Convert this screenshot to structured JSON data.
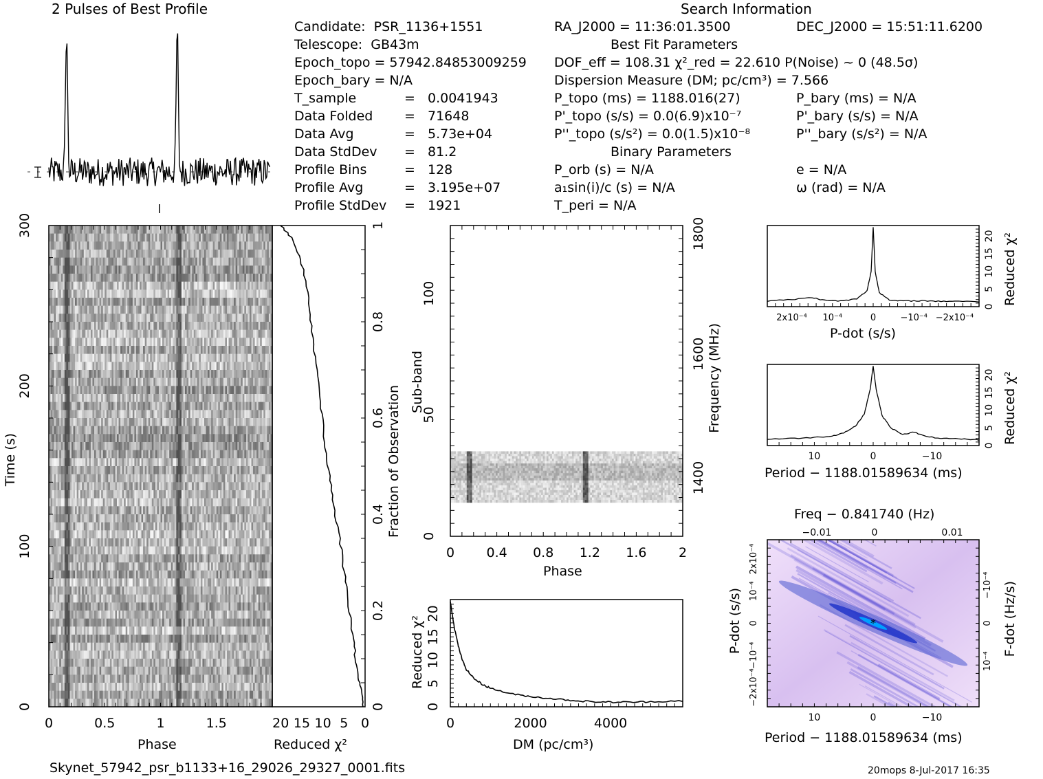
{
  "profile_panel": {
    "title": "2 Pulses of Best Profile",
    "pulse_phase": 0.16,
    "pulse_amplitude": 1.0,
    "noise_level": 0.1
  },
  "search_info": {
    "heading": "Search Information",
    "candidate_label": "Candidate:",
    "candidate": "PSR_1136+1551",
    "telescope_label": "Telescope:",
    "telescope": "GB43m",
    "epoch_topo": "Epoch_topo = 57942.84853009259",
    "epoch_bary": "Epoch_bary = N/A",
    "t_sample_label": "T_sample",
    "t_sample": "0.0041943",
    "data_folded_label": "Data Folded",
    "data_folded": "71648",
    "data_avg_label": "Data Avg",
    "data_avg": "5.73e+04",
    "data_stddev_label": "Data StdDev",
    "data_stddev": "81.2",
    "profile_bins_label": "Profile Bins",
    "profile_bins": "128",
    "profile_avg_label": "Profile Avg",
    "profile_avg": "3.195e+07",
    "profile_stddev_label": "Profile StdDev",
    "profile_stddev": "1921",
    "eq": "=",
    "ra": "RA_J2000 = 11:36:01.3500",
    "dec": "DEC_J2000 = 15:51:11.6200",
    "best_fit_heading": "Best Fit Parameters",
    "dof": "DOF_eff = 108.31  χ²_red = 22.610  P(Noise) ~ 0   (48.5σ)",
    "dm": "Dispersion Measure (DM; pc/cm³) = 7.566",
    "p_topo": "P_topo (ms) =  1188.016(27)",
    "p_bary": "P_bary (ms) = N/A",
    "pdot_topo": "P'_topo (s/s) = 0.0(6.9)x10⁻⁷",
    "pdot_bary": "P'_bary (s/s) = N/A",
    "pddot_topo": "P''_topo (s/s²) = 0.0(1.5)x10⁻⁸",
    "pddot_bary": "P''_bary (s/s²) = N/A",
    "binary_heading": "Binary Parameters",
    "p_orb": "P_orb (s) = N/A",
    "e": "e = N/A",
    "a1sini": "a₁sin(i)/c (s) = N/A",
    "omega": "ω (rad) = N/A",
    "t_peri": "T_peri = N/A"
  },
  "footer": {
    "filename": "Skynet_57942_psr_b1133+16_29026_29327_0001.fits",
    "stamp": "20mops   8-Jul-2017 16:35"
  },
  "colors": {
    "ink": "#000000",
    "dd_bg": "#e6d2f5",
    "dd_mid": "#4a5ad0",
    "dd_core": "#00a0ff"
  },
  "chart_data": [
    {
      "id": "time_phase",
      "type": "heatmap",
      "xlabel": "Phase",
      "ylabel": "Time (s)",
      "xlim": [
        0,
        2
      ],
      "ylim": [
        0,
        300
      ],
      "xticks": [
        "0",
        "0.5",
        "1",
        "1.5"
      ],
      "yticks": [
        "0",
        "100",
        "200",
        "300"
      ],
      "pulse_phases": [
        0.16,
        1.16
      ]
    },
    {
      "id": "chi2_vs_time",
      "type": "line",
      "xlabel": "Reduced χ²",
      "right_label": "Fraction of Observation",
      "xlim": [
        22,
        0
      ],
      "ylim": [
        0,
        1
      ],
      "xticks": [
        "20",
        "15",
        "10",
        "5",
        "0"
      ],
      "yticks": [
        "0",
        "0.2",
        "0.4",
        "0.6",
        "0.8",
        "1"
      ],
      "points": [
        [
          0.3,
          0.0
        ],
        [
          0.8,
          0.03
        ],
        [
          1.5,
          0.06
        ],
        [
          2.2,
          0.1
        ],
        [
          3.0,
          0.15
        ],
        [
          4.0,
          0.22
        ],
        [
          5.0,
          0.28
        ],
        [
          6.0,
          0.35
        ],
        [
          7.5,
          0.42
        ],
        [
          8.5,
          0.48
        ],
        [
          9.5,
          0.55
        ],
        [
          10.5,
          0.62
        ],
        [
          11.5,
          0.7
        ],
        [
          12.5,
          0.78
        ],
        [
          13.5,
          0.85
        ],
        [
          15.0,
          0.92
        ],
        [
          17.0,
          0.97
        ],
        [
          20.0,
          1.0
        ]
      ]
    },
    {
      "id": "subband_phase",
      "type": "heatmap",
      "xlabel": "Phase",
      "ylabel": "Sub-band",
      "right_label": "Frequency (MHz)",
      "xlim": [
        0,
        2
      ],
      "ylim": [
        0,
        128
      ],
      "xticks": [
        "0",
        "0.4",
        "0.8",
        "1.2",
        "1.6",
        "2"
      ],
      "yticks": [
        "0",
        "50",
        "100"
      ],
      "freq_ticks": [
        "1400",
        "1600",
        "1800"
      ],
      "band_range": [
        14,
        35
      ],
      "pulse_phases": [
        0.16,
        1.16
      ]
    },
    {
      "id": "dm_curve",
      "type": "line",
      "xlabel": "DM (pc/cm³)",
      "ylabel": "Reduced χ²",
      "xlim": [
        0,
        5800
      ],
      "ylim": [
        0,
        23
      ],
      "xticks": [
        "0",
        "2000",
        "4000"
      ],
      "yticks": [
        "0",
        "5",
        "10",
        "15",
        "20"
      ],
      "points": [
        [
          0,
          22.6
        ],
        [
          100,
          17
        ],
        [
          200,
          13
        ],
        [
          300,
          10
        ],
        [
          400,
          8
        ],
        [
          600,
          6
        ],
        [
          800,
          4.8
        ],
        [
          1000,
          4.0
        ],
        [
          1500,
          2.8
        ],
        [
          2000,
          2.2
        ],
        [
          2500,
          1.8
        ],
        [
          3000,
          1.4
        ],
        [
          3500,
          1.1
        ],
        [
          4000,
          1.0
        ],
        [
          4500,
          1.0
        ],
        [
          5000,
          1.1
        ],
        [
          5800,
          1.3
        ]
      ]
    },
    {
      "id": "pdot_curve",
      "type": "line",
      "xlabel": "P-dot (s/s)",
      "ylabel": "Reduced χ²",
      "xlim": [
        0.00026,
        -0.00026
      ],
      "ylim": [
        0,
        23
      ],
      "xticks": [
        "2x10⁻⁴",
        "10⁻⁴",
        "0",
        "−10⁻⁴",
        "−2x10⁻⁴"
      ],
      "yticks": [
        "0",
        "5",
        "10",
        "15",
        "20"
      ],
      "points": [
        [
          0.00026,
          1.6
        ],
        [
          0.0002,
          2.0
        ],
        [
          0.00015,
          2.6
        ],
        [
          0.00012,
          1.8
        ],
        [
          8e-05,
          1.6
        ],
        [
          4e-05,
          2.2
        ],
        [
          1.5e-05,
          4.5
        ],
        [
          5e-06,
          10
        ],
        [
          0,
          22.6
        ],
        [
          -5e-06,
          10
        ],
        [
          -1.5e-05,
          4.0
        ],
        [
          -4e-05,
          1.8
        ],
        [
          -8e-05,
          1.6
        ],
        [
          -0.00012,
          1.7
        ],
        [
          -0.00016,
          1.5
        ],
        [
          -0.0002,
          1.6
        ],
        [
          -0.00026,
          1.4
        ]
      ]
    },
    {
      "id": "period_curve",
      "type": "line",
      "xlabel": "Period − 1188.01589634 (ms)",
      "ylabel": "Reduced χ²",
      "xlim": [
        18,
        -18
      ],
      "ylim": [
        0,
        23
      ],
      "xticks": [
        "10",
        "0",
        "−10"
      ],
      "yticks": [
        "0",
        "5",
        "10",
        "15",
        "20"
      ],
      "points": [
        [
          18,
          1.8
        ],
        [
          14,
          2.0
        ],
        [
          10,
          2.3
        ],
        [
          7,
          2.7
        ],
        [
          5,
          3.6
        ],
        [
          3,
          5.5
        ],
        [
          1.5,
          9
        ],
        [
          0.5,
          16
        ],
        [
          0,
          22.6
        ],
        [
          -0.5,
          16
        ],
        [
          -1.5,
          8.5
        ],
        [
          -3,
          5.0
        ],
        [
          -5,
          3.2
        ],
        [
          -7,
          3.8
        ],
        [
          -9,
          2.5
        ],
        [
          -12,
          2.0
        ],
        [
          -15,
          1.8
        ],
        [
          -18,
          1.6
        ]
      ]
    },
    {
      "id": "period_pdot",
      "type": "heatmap",
      "title": "Freq − 0.841740 (Hz)",
      "xlabel": "Period − 1188.01589634 (ms)",
      "ylabel": "P-dot (s/s)",
      "right_label": "F-dot (Hz/s)",
      "xlim": [
        18,
        -18
      ],
      "ylim": [
        -0.00026,
        0.00026
      ],
      "xticks": [
        "10",
        "0",
        "−10"
      ],
      "top_ticks": [
        "−0.01",
        "0",
        "0.01"
      ],
      "yticks": [
        "2x10⁻⁴",
        "10⁻⁴",
        "0",
        "−10⁻⁴",
        "−2x10⁻⁴"
      ],
      "right_ticks": [
        "−10⁻⁴",
        "0",
        "10⁻⁴"
      ],
      "peak": [
        0,
        0
      ]
    }
  ]
}
